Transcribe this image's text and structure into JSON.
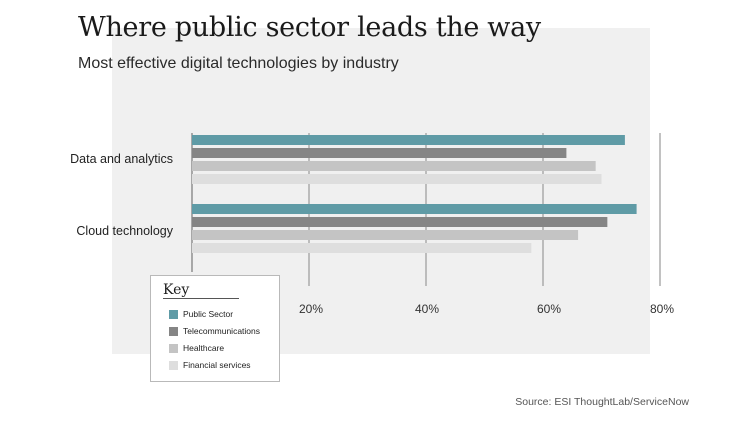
{
  "header": {
    "title": "Where public sector leads the way",
    "subtitle": "Most effective digital technologies by industry"
  },
  "chart_data": {
    "type": "bar",
    "orientation": "horizontal",
    "title": "Where public sector leads the way",
    "subtitle": "Most effective digital technologies by industry",
    "categories": [
      "Data and analytics",
      "Cloud technology"
    ],
    "series": [
      {
        "name": "Public Sector",
        "color": "#5f9ba6",
        "values": [
          74,
          76
        ]
      },
      {
        "name": "Telecommunications",
        "color": "#858585",
        "values": [
          64,
          71
        ]
      },
      {
        "name": "Healthcare",
        "color": "#c4c4c4",
        "values": [
          69,
          66
        ]
      },
      {
        "name": "Financial services",
        "color": "#dedede",
        "values": [
          70,
          58
        ]
      }
    ],
    "x_ticks": [
      20,
      40,
      60,
      80
    ],
    "x_tick_labels": [
      "20%",
      "40%",
      "60%",
      "80%"
    ],
    "xlim": [
      0,
      80
    ],
    "xlabel": "",
    "ylabel": "",
    "legend_title": "Key",
    "legend_position": "bottom-left",
    "grid": true,
    "source": "Source: ESI ThoughtLab/ServiceNow"
  }
}
